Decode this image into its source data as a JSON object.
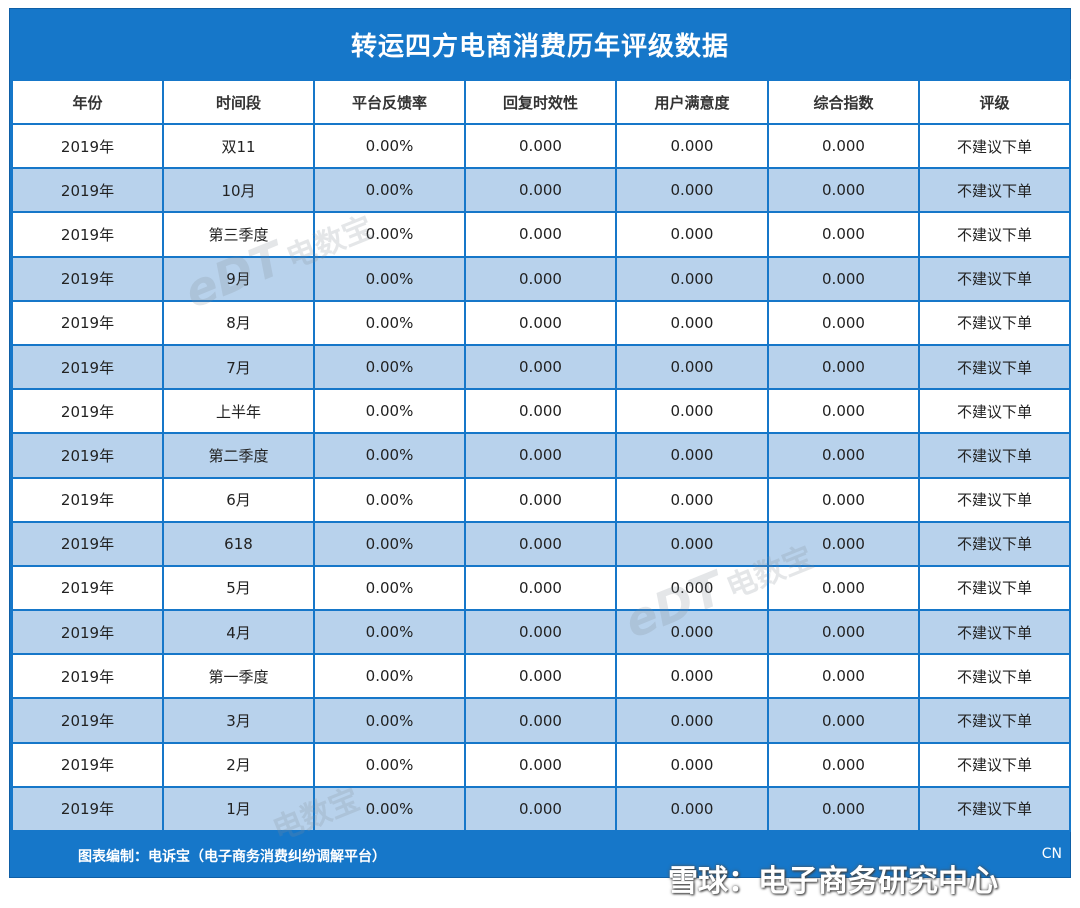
{
  "title": "转运四方电商消费历年评级数据",
  "columns": [
    "年份",
    "时间段",
    "平台反馈率",
    "回复时效性",
    "用户满意度",
    "综合指数",
    "评级"
  ],
  "rows": [
    [
      "2019年",
      "双11",
      "0.00%",
      "0.000",
      "0.000",
      "0.000",
      "不建议下单"
    ],
    [
      "2019年",
      "10月",
      "0.00%",
      "0.000",
      "0.000",
      "0.000",
      "不建议下单"
    ],
    [
      "2019年",
      "第三季度",
      "0.00%",
      "0.000",
      "0.000",
      "0.000",
      "不建议下单"
    ],
    [
      "2019年",
      "9月",
      "0.00%",
      "0.000",
      "0.000",
      "0.000",
      "不建议下单"
    ],
    [
      "2019年",
      "8月",
      "0.00%",
      "0.000",
      "0.000",
      "0.000",
      "不建议下单"
    ],
    [
      "2019年",
      "7月",
      "0.00%",
      "0.000",
      "0.000",
      "0.000",
      "不建议下单"
    ],
    [
      "2019年",
      "上半年",
      "0.00%",
      "0.000",
      "0.000",
      "0.000",
      "不建议下单"
    ],
    [
      "2019年",
      "第二季度",
      "0.00%",
      "0.000",
      "0.000",
      "0.000",
      "不建议下单"
    ],
    [
      "2019年",
      "6月",
      "0.00%",
      "0.000",
      "0.000",
      "0.000",
      "不建议下单"
    ],
    [
      "2019年",
      "618",
      "0.00%",
      "0.000",
      "0.000",
      "0.000",
      "不建议下单"
    ],
    [
      "2019年",
      "5月",
      "0.00%",
      "0.000",
      "0.000",
      "0.000",
      "不建议下单"
    ],
    [
      "2019年",
      "4月",
      "0.00%",
      "0.000",
      "0.000",
      "0.000",
      "不建议下单"
    ],
    [
      "2019年",
      "第一季度",
      "0.00%",
      "0.000",
      "0.000",
      "0.000",
      "不建议下单"
    ],
    [
      "2019年",
      "3月",
      "0.00%",
      "0.000",
      "0.000",
      "0.000",
      "不建议下单"
    ],
    [
      "2019年",
      "2月",
      "0.00%",
      "0.000",
      "0.000",
      "0.000",
      "不建议下单"
    ],
    [
      "2019年",
      "1月",
      "0.00%",
      "0.000",
      "0.000",
      "0.000",
      "不建议下单"
    ]
  ],
  "footer": {
    "credit": "图表编制：电诉宝（电子商务消费纠纷调解平台）",
    "site": "CN"
  },
  "overlay_brand": "雪球：电子商务研究中心",
  "watermark": {
    "logo": "eDT",
    "text": "电数宝"
  },
  "colors": {
    "frame": "#1677c9",
    "row_alt": "#b8d2ec",
    "row": "#ffffff"
  }
}
